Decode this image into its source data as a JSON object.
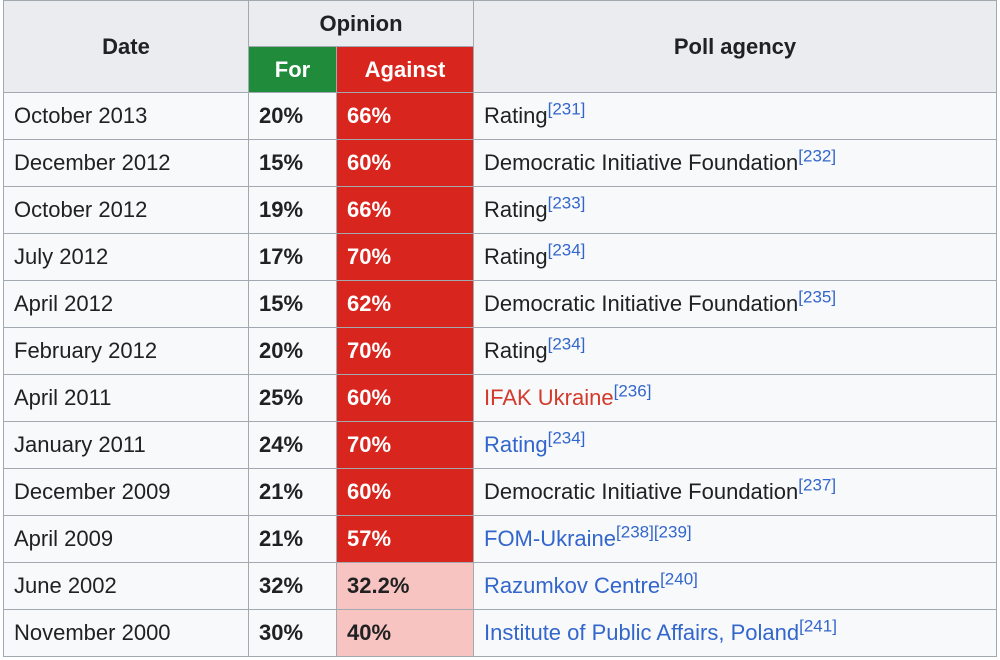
{
  "headers": {
    "date": "Date",
    "opinion": "Opinion",
    "for": "For",
    "against": "Against",
    "agency": "Poll agency"
  },
  "colors": {
    "for_header": "#1f8b3b",
    "against_strong": "#d8261f",
    "against_light": "#f8c4c1",
    "link_blue": "#3366cc",
    "link_red": "#d33a2c"
  },
  "rows": [
    {
      "date": "October 2013",
      "for": "20%",
      "against": "66%",
      "against_style": "strong",
      "agency": "Rating",
      "agency_style": "plain",
      "refs": "[231]"
    },
    {
      "date": "December 2012",
      "for": "15%",
      "against": "60%",
      "against_style": "strong",
      "agency": "Democratic Initiative Foundation",
      "agency_style": "plain",
      "refs": "[232]"
    },
    {
      "date": "October 2012",
      "for": "19%",
      "against": "66%",
      "against_style": "strong",
      "agency": "Rating",
      "agency_style": "plain",
      "refs": "[233]"
    },
    {
      "date": "July 2012",
      "for": "17%",
      "against": "70%",
      "against_style": "strong",
      "agency": "Rating",
      "agency_style": "plain",
      "refs": "[234]"
    },
    {
      "date": "April 2012",
      "for": "15%",
      "against": "62%",
      "against_style": "strong",
      "agency": "Democratic Initiative Foundation",
      "agency_style": "plain",
      "refs": "[235]"
    },
    {
      "date": "February 2012",
      "for": "20%",
      "against": "70%",
      "against_style": "strong",
      "agency": "Rating",
      "agency_style": "plain",
      "refs": "[234]"
    },
    {
      "date": "April 2011",
      "for": "25%",
      "against": "60%",
      "against_style": "strong",
      "agency": "IFAK Ukraine",
      "agency_style": "red",
      "refs": "[236]"
    },
    {
      "date": "January 2011",
      "for": "24%",
      "against": "70%",
      "against_style": "strong",
      "agency": "Rating",
      "agency_style": "blue",
      "refs": "[234]"
    },
    {
      "date": "December 2009",
      "for": "21%",
      "against": "60%",
      "against_style": "strong",
      "agency": "Democratic Initiative Foundation",
      "agency_style": "plain",
      "refs": "[237]"
    },
    {
      "date": "April 2009",
      "for": "21%",
      "against": "57%",
      "against_style": "strong",
      "agency": "FOM-Ukraine",
      "agency_style": "blue",
      "refs": "[238][239]"
    },
    {
      "date": "June 2002",
      "for": "32%",
      "against": "32.2%",
      "against_style": "light",
      "agency": "Razumkov Centre",
      "agency_style": "blue",
      "refs": "[240]"
    },
    {
      "date": "November 2000",
      "for": "30%",
      "against": "40%",
      "against_style": "light",
      "agency": "Institute of Public Affairs, Poland",
      "agency_style": "blue",
      "refs": "[241]"
    }
  ]
}
